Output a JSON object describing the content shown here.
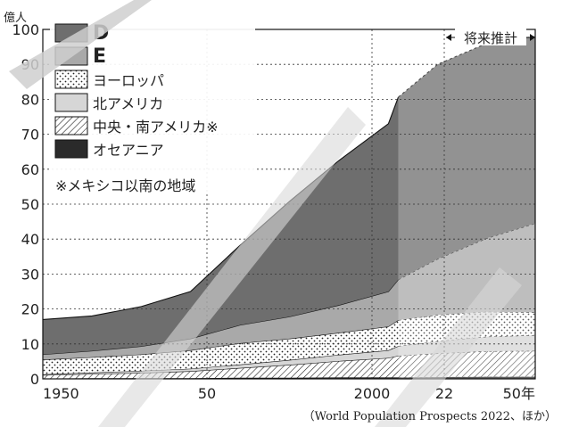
{
  "chart_data": {
    "type": "area",
    "stacked": true,
    "title": "",
    "ylabel": "億人",
    "xlabel": "",
    "ylim": [
      0,
      100
    ],
    "xlim": [
      1950,
      2050
    ],
    "y_ticks": [
      0,
      10,
      20,
      30,
      40,
      50,
      60,
      70,
      80,
      90,
      100
    ],
    "x_ticks": [
      {
        "value": 1950,
        "label": "1950"
      },
      {
        "value": 2000,
        "label": "50"
      },
      {
        "value": 2050,
        "label": "2000"
      },
      {
        "value": 2072,
        "label": "22"
      },
      {
        "value": 2100,
        "label": "50年"
      }
    ],
    "x": [
      1950,
      1960,
      1970,
      1980,
      1990,
      2000,
      2010,
      2020,
      2022,
      2030,
      2040,
      2050
    ],
    "projection_label": "将来推計",
    "projection_start": 2022,
    "series": [
      {
        "name": "オセアニア",
        "color": "#2a2a2a",
        "pattern": "solid",
        "values": [
          0.1,
          0.2,
          0.2,
          0.2,
          0.3,
          0.3,
          0.4,
          0.4,
          0.4,
          0.5,
          0.6,
          0.6
        ]
      },
      {
        "name": "中央・南アメリカ※",
        "color": "#ffffff",
        "pattern": "hatch",
        "values": [
          1.0,
          1.2,
          1.5,
          2.0,
          2.8,
          3.7,
          4.7,
          5.6,
          6.2,
          6.8,
          7.3,
          7.4
        ]
      },
      {
        "name": "北アメリカ",
        "color": "#d6d6d6",
        "pattern": "solid",
        "values": [
          0.2,
          0.4,
          0.6,
          0.7,
          1.0,
          1.4,
          1.8,
          2.2,
          2.8,
          3.5,
          4.2,
          4.5
        ]
      },
      {
        "name": "ヨーロッパ",
        "color": "#ffffff",
        "pattern": "dots",
        "values": [
          4.2,
          4.4,
          4.7,
          5.3,
          6.1,
          6.1,
          6.3,
          6.8,
          7.4,
          7.5,
          7.1,
          6.5
        ]
      },
      {
        "name": "E",
        "color": "#a9a9a9",
        "pattern": "solid",
        "values": [
          1.5,
          1.8,
          2.3,
          3.3,
          5.2,
          6.3,
          7.9,
          10.0,
          11.6,
          16.0,
          21.0,
          25.5
        ]
      },
      {
        "name": "D",
        "color": "#6e6e6e",
        "pattern": "solid",
        "values": [
          10.0,
          10.0,
          11.4,
          13.5,
          22.8,
          33.0,
          41.4,
          48.0,
          52.2,
          55.7,
          55.8,
          53.5
        ]
      }
    ],
    "legend_note": "※メキシコ以南の地域",
    "source": "（World Population Prospects 2022、ほか）"
  }
}
